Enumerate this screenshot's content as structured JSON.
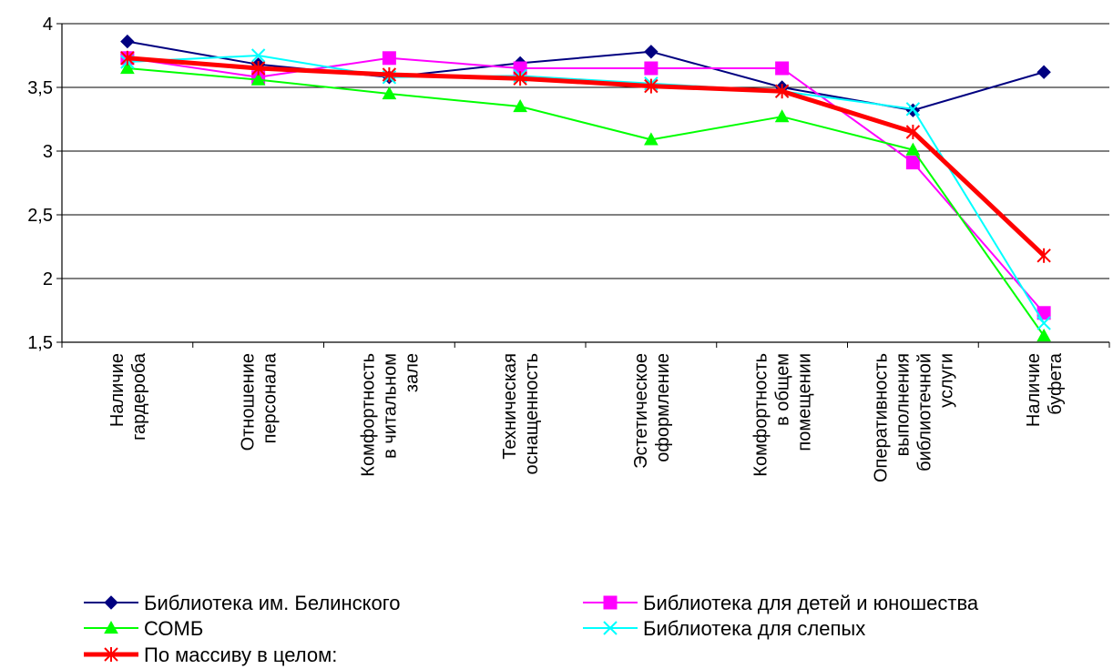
{
  "chart_data": {
    "type": "line",
    "categories": [
      [
        "Наличие",
        "гардероба"
      ],
      [
        "Отношение",
        "персонала"
      ],
      [
        "Комфортность",
        "в читальном",
        "зале"
      ],
      [
        "Техническая",
        "оснащенность"
      ],
      [
        "Эстетическое",
        "оформление"
      ],
      [
        "Комфортность",
        "в общем",
        "помещении"
      ],
      [
        "Оперативность",
        "выполнения",
        "библиотечной",
        "услуги"
      ],
      [
        "Наличие",
        "буфета"
      ]
    ],
    "series": [
      {
        "name": "Библиотека им. Белинского",
        "color": "#000080",
        "marker": "diamond",
        "width": 2,
        "values": [
          3.86,
          3.68,
          3.58,
          3.69,
          3.78,
          3.5,
          3.32,
          3.62
        ]
      },
      {
        "name": "Библиотека для детей и юношества",
        "color": "#ff00ff",
        "marker": "square",
        "width": 2,
        "values": [
          3.73,
          3.58,
          3.73,
          3.65,
          3.65,
          3.65,
          2.91,
          1.73
        ]
      },
      {
        "name": "СОМБ",
        "color": "#00ff00",
        "marker": "triangle",
        "width": 2,
        "values": [
          3.65,
          3.56,
          3.45,
          3.35,
          3.09,
          3.27,
          3.01,
          1.55
        ]
      },
      {
        "name": "Библиотека для слепых",
        "color": "#00ffff",
        "marker": "x",
        "width": 2,
        "values": [
          3.7,
          3.75,
          3.58,
          3.59,
          3.53,
          3.47,
          3.33,
          1.65
        ]
      },
      {
        "name": "По массиву в целом:",
        "color": "#ff0000",
        "marker": "star",
        "width": 5,
        "values": [
          3.73,
          3.65,
          3.6,
          3.57,
          3.51,
          3.47,
          3.15,
          2.18
        ]
      }
    ],
    "ylim": [
      1.5,
      4
    ],
    "yticks": [
      "1,5",
      "2",
      "2,5",
      "3",
      "3,5",
      "4"
    ],
    "ytick_values": [
      1.5,
      2,
      2.5,
      3,
      3.5,
      4
    ],
    "grid": true,
    "legend_position": "bottom"
  }
}
